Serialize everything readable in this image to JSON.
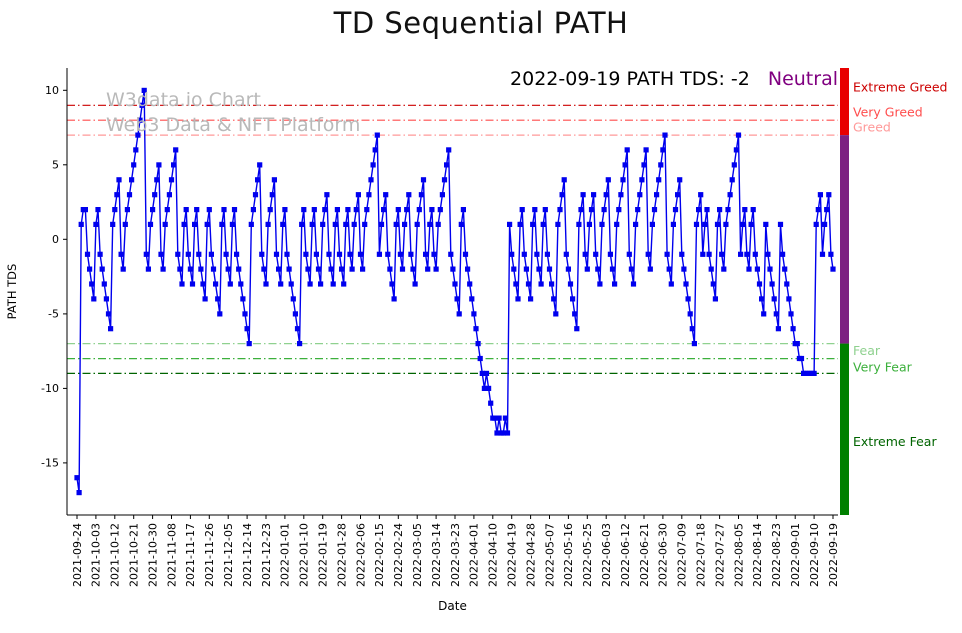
{
  "title": "TD Sequential PATH",
  "annotation": {
    "text": "2022-09-19 PATH TDS: -2",
    "status": "Neutral",
    "status_color": "#800080"
  },
  "watermark": {
    "line1": "W3data.io Chart",
    "line2": "Web3 Data & NFT Platform"
  },
  "chart_data": {
    "type": "line",
    "title": "TD Sequential PATH",
    "xlabel": "Date",
    "ylabel": "PATH TDS",
    "ylim": [
      -18.5,
      11.5
    ],
    "yticks": [
      10,
      5,
      0,
      -5,
      -10,
      -15
    ],
    "line_color": "#0000ee",
    "marker": "square",
    "grid": false,
    "x_tick_step": 9,
    "x_tick_labels": [
      "2021-09-24",
      "2021-10-03",
      "2021-10-12",
      "2021-10-21",
      "2021-10-30",
      "2021-11-08",
      "2021-11-17",
      "2021-11-26",
      "2021-12-05",
      "2021-12-14",
      "2021-12-23",
      "2022-01-01",
      "2022-01-10",
      "2022-01-19",
      "2022-01-28",
      "2022-02-06",
      "2022-02-15",
      "2022-02-24",
      "2022-03-05",
      "2022-03-14",
      "2022-03-23",
      "2022-04-01",
      "2022-04-10",
      "2022-04-19",
      "2022-04-28",
      "2022-05-07",
      "2022-05-16",
      "2022-05-25",
      "2022-06-03",
      "2022-06-12",
      "2022-06-21",
      "2022-06-30",
      "2022-07-09",
      "2022-07-18",
      "2022-07-27",
      "2022-08-05",
      "2022-08-14",
      "2022-08-23",
      "2022-09-01",
      "2022-09-10",
      "2022-09-19"
    ],
    "values": [
      -16,
      -17,
      1,
      2,
      2,
      -1,
      -2,
      -3,
      -4,
      1,
      2,
      -1,
      -2,
      -3,
      -4,
      -5,
      -6,
      1,
      2,
      3,
      4,
      -1,
      -2,
      1,
      2,
      3,
      4,
      5,
      6,
      7,
      8,
      9,
      10,
      -1,
      -2,
      1,
      2,
      3,
      4,
      5,
      -1,
      -2,
      1,
      2,
      3,
      4,
      5,
      6,
      -1,
      -2,
      -3,
      1,
      2,
      -1,
      -2,
      -3,
      1,
      2,
      -1,
      -2,
      -3,
      -4,
      1,
      2,
      -1,
      -2,
      -3,
      -4,
      -5,
      1,
      2,
      -1,
      -2,
      -3,
      1,
      2,
      -1,
      -2,
      -3,
      -4,
      -5,
      -6,
      -7,
      1,
      2,
      3,
      4,
      5,
      -1,
      -2,
      -3,
      1,
      2,
      3,
      4,
      -1,
      -2,
      -3,
      1,
      2,
      -1,
      -2,
      -3,
      -4,
      -5,
      -6,
      -7,
      1,
      2,
      -1,
      -2,
      -3,
      1,
      2,
      -1,
      -2,
      -3,
      1,
      2,
      3,
      -1,
      -2,
      -3,
      1,
      2,
      -1,
      -2,
      -3,
      1,
      2,
      -1,
      -2,
      1,
      2,
      3,
      -1,
      -2,
      1,
      2,
      3,
      4,
      5,
      6,
      7,
      -1,
      1,
      2,
      3,
      -1,
      -2,
      -3,
      -4,
      1,
      2,
      -1,
      -2,
      1,
      2,
      3,
      -1,
      -2,
      -3,
      1,
      2,
      3,
      4,
      -1,
      -2,
      1,
      2,
      -1,
      -2,
      1,
      2,
      3,
      4,
      5,
      6,
      -1,
      -2,
      -3,
      -4,
      -5,
      1,
      2,
      -1,
      -2,
      -3,
      -4,
      -5,
      -6,
      -7,
      -8,
      -9,
      -10,
      -9,
      -10,
      -11,
      -12,
      -12,
      -13,
      -12,
      -13,
      -13,
      -12,
      -13,
      1,
      -1,
      -2,
      -3,
      -4,
      1,
      2,
      -1,
      -2,
      -3,
      -4,
      1,
      2,
      -1,
      -2,
      -3,
      1,
      2,
      -1,
      -2,
      -3,
      -4,
      -5,
      1,
      2,
      3,
      4,
      -1,
      -2,
      -3,
      -4,
      -5,
      -6,
      1,
      2,
      3,
      -1,
      -2,
      1,
      2,
      3,
      -1,
      -2,
      -3,
      1,
      2,
      3,
      4,
      -1,
      -2,
      -3,
      1,
      2,
      3,
      4,
      5,
      6,
      -1,
      -2,
      -3,
      1,
      2,
      3,
      4,
      5,
      6,
      -1,
      -2,
      1,
      2,
      3,
      4,
      5,
      6,
      7,
      -1,
      -2,
      -3,
      1,
      2,
      3,
      4,
      -1,
      -2,
      -3,
      -4,
      -5,
      -6,
      -7,
      1,
      2,
      3,
      -1,
      1,
      2,
      -1,
      -2,
      -3,
      -4,
      1,
      2,
      -1,
      -2,
      1,
      2,
      3,
      4,
      5,
      6,
      7,
      -1,
      1,
      2,
      -1,
      -2,
      1,
      2,
      -1,
      -2,
      -3,
      -4,
      -5,
      1,
      -1,
      -2,
      -3,
      -4,
      -5,
      -6,
      1,
      -1,
      -2,
      -3,
      -4,
      -5,
      -6,
      -7,
      -7,
      -8,
      -8,
      -9,
      -9,
      -9,
      -9,
      -9,
      -9,
      1,
      2,
      3,
      -1,
      1,
      2,
      3,
      -1,
      -2
    ],
    "thresholds": [
      {
        "value": 9,
        "color": "#cc0000"
      },
      {
        "value": 8,
        "color": "#ff4d4d"
      },
      {
        "value": 7,
        "color": "#ff9999"
      },
      {
        "value": -7,
        "color": "#8fd18f"
      },
      {
        "value": -8,
        "color": "#3cb03c"
      },
      {
        "value": -9,
        "color": "#006400"
      }
    ],
    "zones": [
      {
        "label": "greed-zone",
        "color": "#e80000",
        "from": 7,
        "to": 11.5
      },
      {
        "label": "neutral-zone",
        "color": "#7d2181",
        "from": -7,
        "to": 7
      },
      {
        "label": "fear-zone",
        "color": "#008000",
        "from": -18.5,
        "to": -7
      }
    ],
    "zone_labels": [
      {
        "text": "Extreme Greed",
        "color": "#cc0000",
        "at": 10.2
      },
      {
        "text": "Very Greed",
        "color": "#ff4d4d",
        "at": 8.5
      },
      {
        "text": "Greed",
        "color": "#ff9999",
        "at": 7.5
      },
      {
        "text": "Fear",
        "color": "#8fd18f",
        "at": -7.5
      },
      {
        "text": "Very Fear",
        "color": "#3cb03c",
        "at": -8.6
      },
      {
        "text": "Extreme Fear",
        "color": "#006400",
        "at": -13.6
      }
    ]
  }
}
